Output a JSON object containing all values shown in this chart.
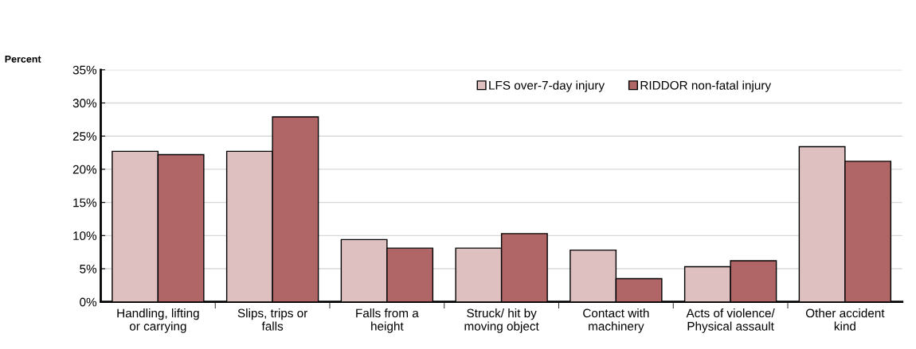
{
  "chart_data": {
    "type": "bar",
    "ylabel": "Percent",
    "categories": [
      "Handling, lifting\nor carrying",
      "Slips, trips or\nfalls",
      "Falls from a\nheight",
      "Struck/ hit by\nmoving object",
      "Contact with\nmachinery",
      "Acts of violence/\nPhysical assault",
      "Other accident\nkind"
    ],
    "series": [
      {
        "name": "LFS over-7-day injury",
        "color": "#dfc0c1",
        "values": [
          22.7,
          22.7,
          9.4,
          8.1,
          7.8,
          5.3,
          23.4
        ]
      },
      {
        "name": "RIDDOR non-fatal injury",
        "color": "#b06666",
        "values": [
          22.2,
          27.9,
          8.1,
          10.3,
          3.5,
          6.2,
          21.2
        ]
      }
    ],
    "ylim": [
      0,
      35
    ],
    "yticks": [
      {
        "value": 0,
        "label": "0%"
      },
      {
        "value": 5,
        "label": "5%"
      },
      {
        "value": 10,
        "label": "10%"
      },
      {
        "value": 15,
        "label": "15%"
      },
      {
        "value": 20,
        "label": "20%"
      },
      {
        "value": 25,
        "label": "25%"
      },
      {
        "value": 30,
        "label": "30%"
      },
      {
        "value": 35,
        "label": "35%"
      }
    ],
    "grid": "y",
    "legend": "top right"
  }
}
